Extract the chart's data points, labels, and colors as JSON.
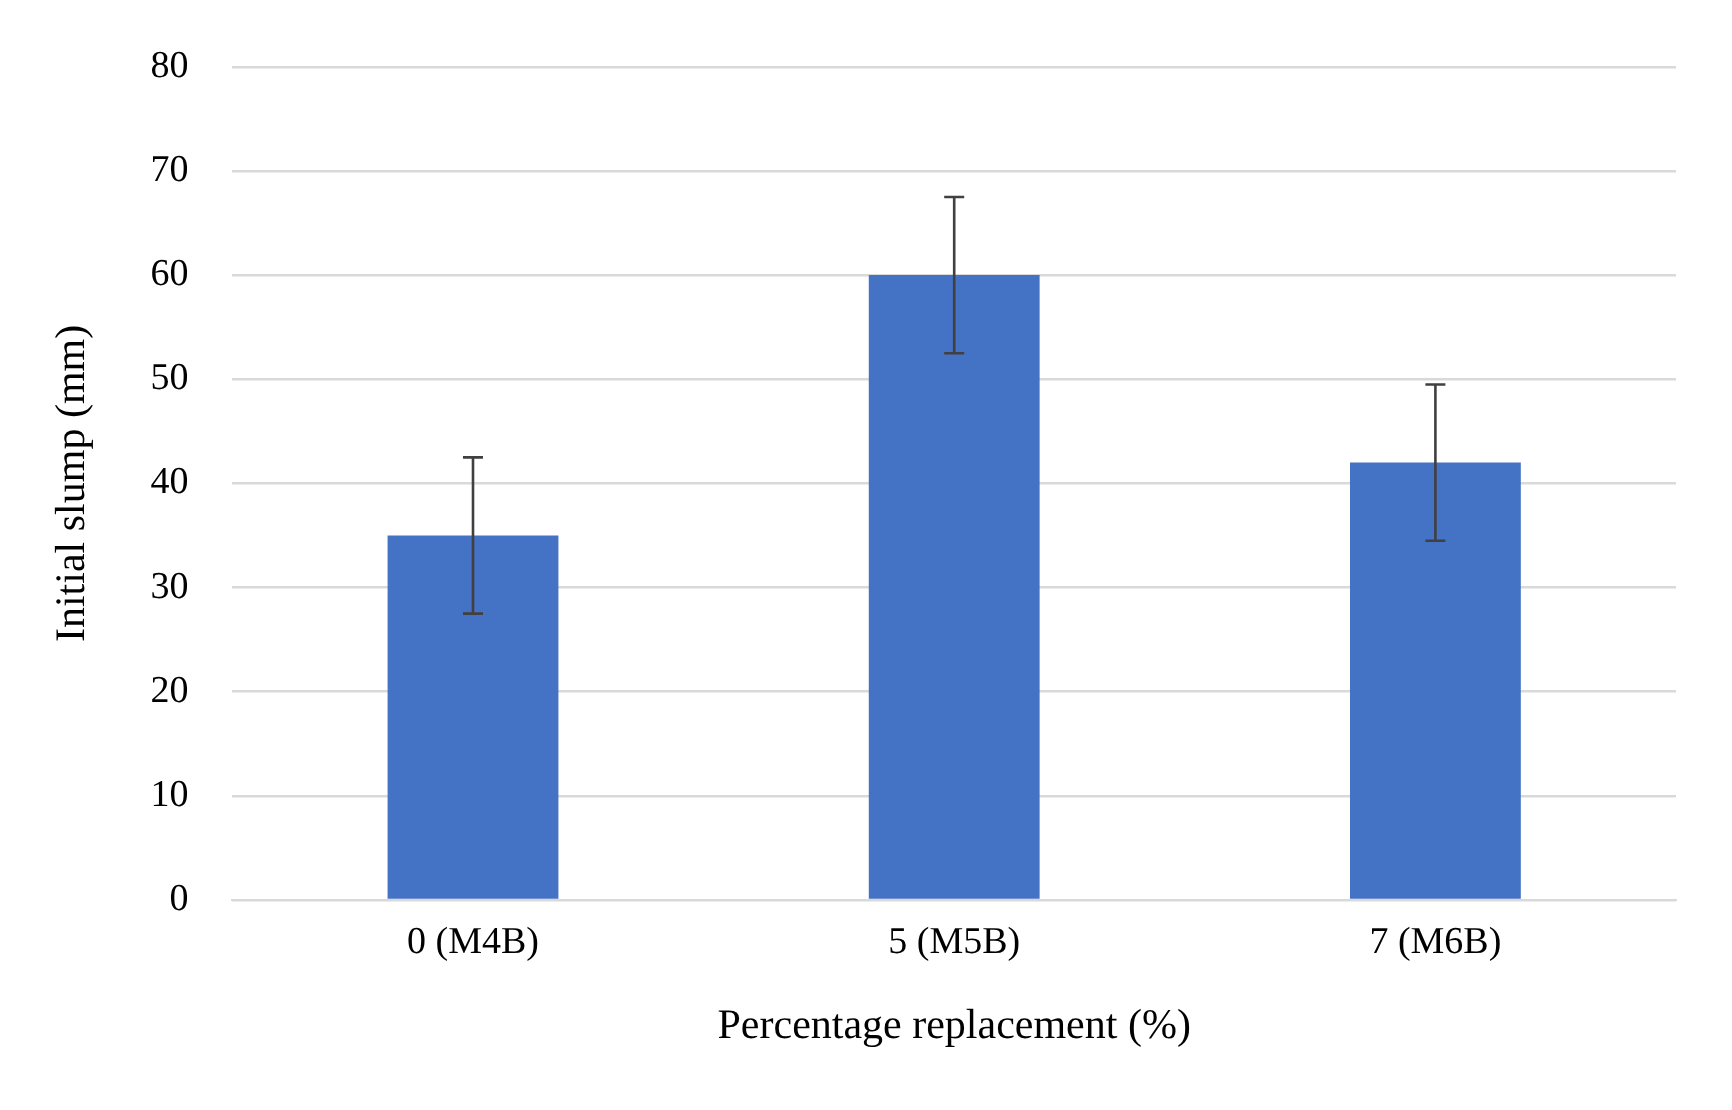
{
  "chart_data": {
    "type": "bar",
    "xlabel": "Percentage replacement (%)",
    "ylabel": "Initial slump (mm)",
    "categories": [
      "0 (M4B)",
      "5 (M5B)",
      "7 (M6B)"
    ],
    "values": [
      35,
      60,
      42
    ],
    "errors": [
      7.5,
      7.5,
      7.5
    ],
    "color": "#4472c4",
    "ylim": [
      0,
      80
    ],
    "yticks": [
      0,
      10,
      20,
      30,
      40,
      50,
      60,
      70,
      80
    ],
    "grid": "y",
    "legend": false
  }
}
